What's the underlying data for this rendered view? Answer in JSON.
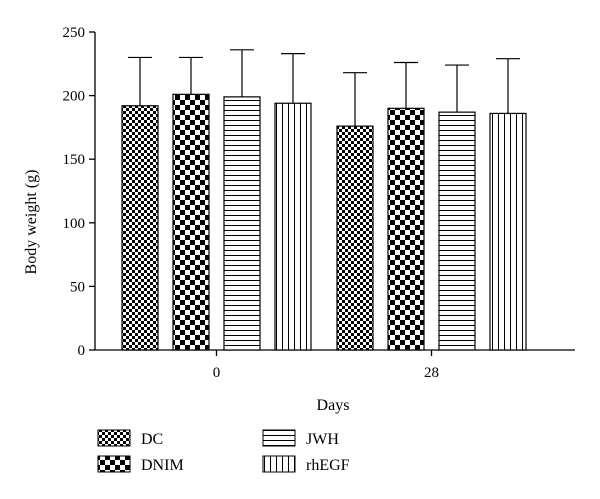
{
  "chart_data": {
    "type": "bar",
    "title": "",
    "xlabel": "Days",
    "ylabel": "Body weight (g)",
    "categories": [
      "0",
      "28"
    ],
    "ylim": [
      0,
      250
    ],
    "yticks": [
      0,
      50,
      100,
      150,
      200,
      250
    ],
    "error_bars": "upper",
    "legend_position": "bottom",
    "series": [
      {
        "name": "DC",
        "pattern": "fine-checker",
        "values": [
          192,
          176
        ],
        "errors": [
          38,
          42
        ]
      },
      {
        "name": "DNIM",
        "pattern": "coarse-checker",
        "values": [
          201,
          190
        ],
        "errors": [
          29,
          36
        ]
      },
      {
        "name": "JWH",
        "pattern": "horizontal-lines",
        "values": [
          199,
          187
        ],
        "errors": [
          37,
          37
        ]
      },
      {
        "name": "rhEGF",
        "pattern": "vertical-lines",
        "values": [
          194,
          186
        ],
        "errors": [
          39,
          43
        ]
      }
    ]
  }
}
